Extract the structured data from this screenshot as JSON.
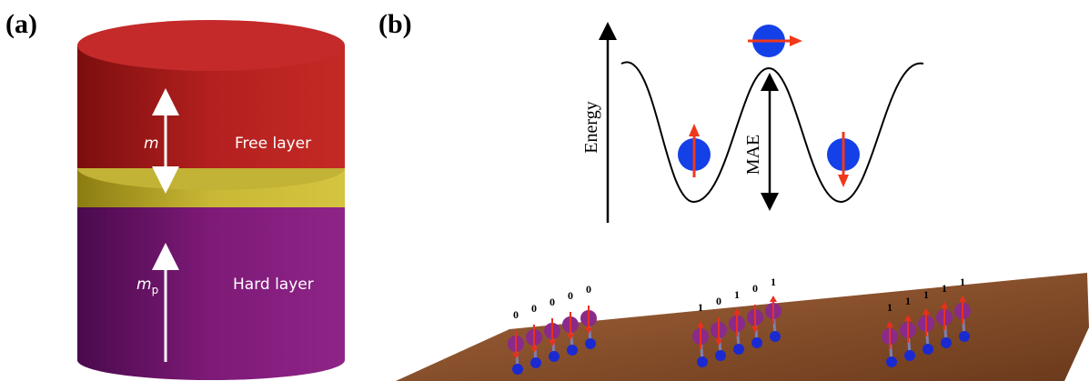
{
  "panel_a": {
    "label": "(a)",
    "top_arrow_symbol": "m",
    "top_layer": "Free layer",
    "bottom_arrow_symbol": "m",
    "bottom_arrow_subscript": "p",
    "bottom_layer": "Hard layer"
  },
  "panel_b": {
    "label": "(b)",
    "energy_axis": "Energy",
    "barrier_label": "MAE",
    "bit_groups": [
      [
        "0",
        "0",
        "0",
        "0",
        "0"
      ],
      [
        "1",
        "0",
        "1",
        "0",
        "1"
      ],
      [
        "1",
        "1",
        "1",
        "1",
        "1"
      ]
    ]
  }
}
